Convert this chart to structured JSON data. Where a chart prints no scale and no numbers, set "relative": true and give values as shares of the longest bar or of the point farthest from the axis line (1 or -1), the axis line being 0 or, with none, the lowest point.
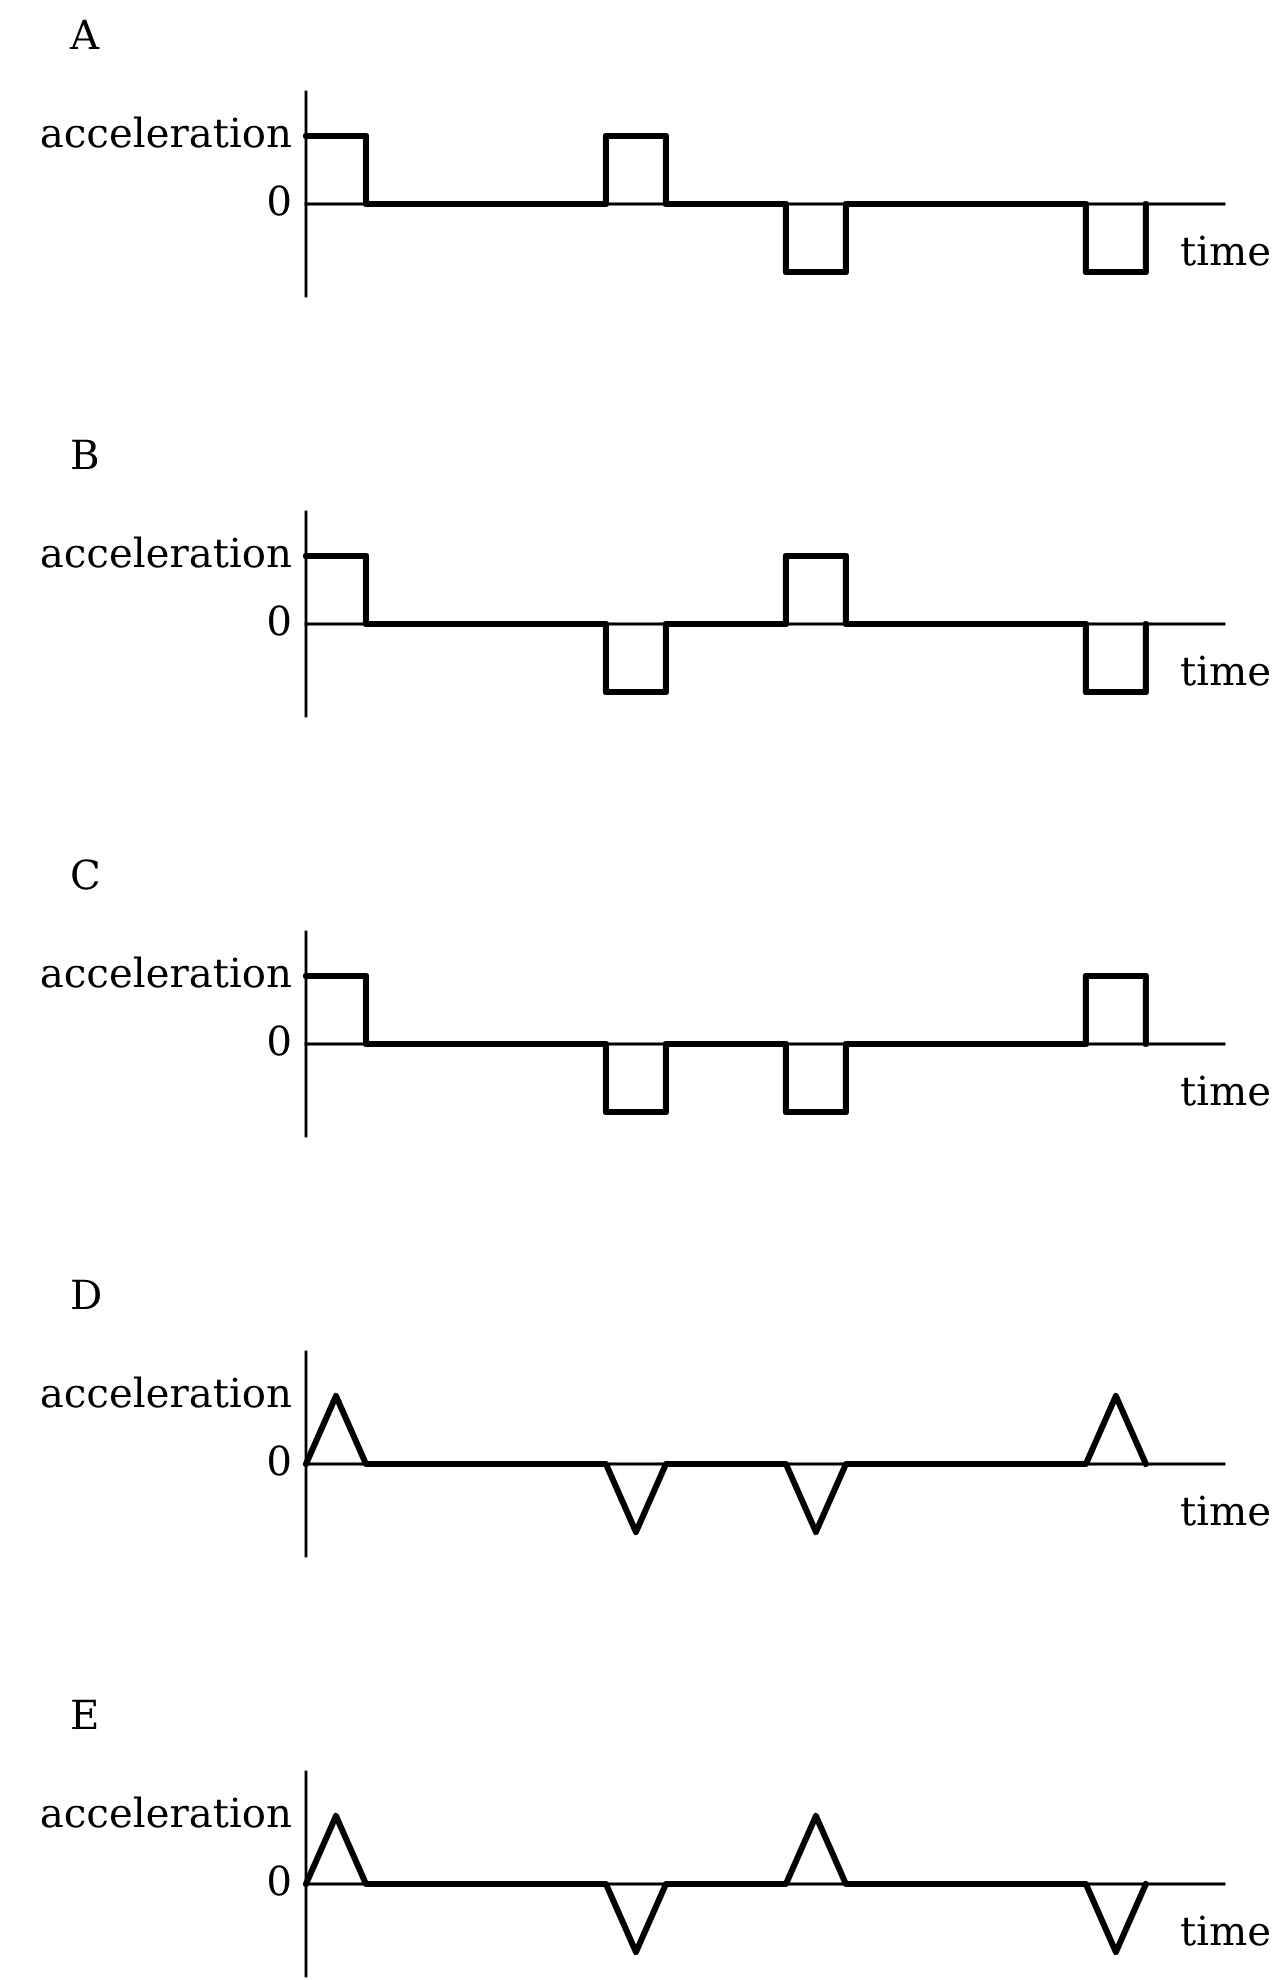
{
  "chart_data": [
    {
      "type": "step",
      "title": "A",
      "xlabel": "time",
      "ylabel": "acceleration",
      "relative": true,
      "annotations": [
        "0"
      ],
      "color": "#000000",
      "categories": [
        null,
        null,
        null,
        null,
        null,
        null,
        null,
        null,
        null,
        null,
        null,
        null,
        null,
        null,
        null
      ],
      "values": [
        1,
        0,
        0,
        0,
        0,
        1,
        0,
        0,
        -1,
        0,
        0,
        0,
        0,
        -1,
        0
      ]
    },
    {
      "type": "step",
      "title": "B",
      "xlabel": "time",
      "ylabel": "acceleration",
      "relative": true,
      "annotations": [
        "0"
      ],
      "color": "#000000",
      "categories": [
        null,
        null,
        null,
        null,
        null,
        null,
        null,
        null,
        null,
        null,
        null,
        null,
        null,
        null,
        null
      ],
      "values": [
        1,
        0,
        0,
        0,
        0,
        -1,
        0,
        0,
        1,
        0,
        0,
        0,
        0,
        -1,
        0
      ]
    },
    {
      "type": "step",
      "title": "C",
      "xlabel": "time",
      "ylabel": "acceleration",
      "relative": true,
      "annotations": [
        "0"
      ],
      "color": "#000000",
      "categories": [
        null,
        null,
        null,
        null,
        null,
        null,
        null,
        null,
        null,
        null,
        null,
        null,
        null,
        null,
        null
      ],
      "values": [
        1,
        0,
        0,
        0,
        0,
        -1,
        0,
        0,
        -1,
        0,
        0,
        0,
        0,
        1,
        0
      ]
    },
    {
      "type": "line",
      "title": "D",
      "xlabel": "time",
      "ylabel": "acceleration",
      "relative": true,
      "annotations": [
        "0"
      ],
      "color": "#000000",
      "categories": [
        null,
        null,
        null,
        null,
        null,
        null,
        null,
        null,
        null,
        null,
        null,
        null,
        null,
        null,
        null,
        null,
        null,
        null,
        null,
        null,
        null,
        null,
        null,
        null,
        null,
        null,
        null,
        null,
        null
      ],
      "values": [
        0,
        1,
        0,
        0,
        0,
        0,
        0,
        0,
        0,
        0,
        0,
        -1,
        0,
        0,
        0,
        0,
        0,
        -1,
        0,
        0,
        0,
        0,
        0,
        0,
        0,
        0,
        0,
        1,
        0
      ]
    },
    {
      "type": "line",
      "title": "E",
      "xlabel": "time",
      "ylabel": "acceleration",
      "relative": true,
      "annotations": [
        "0"
      ],
      "color": "#000000",
      "categories": [
        null,
        null,
        null,
        null,
        null,
        null,
        null,
        null,
        null,
        null,
        null,
        null,
        null,
        null,
        null,
        null,
        null,
        null,
        null,
        null,
        null,
        null,
        null,
        null,
        null,
        null,
        null,
        null,
        null
      ],
      "values": [
        0,
        1,
        0,
        0,
        0,
        0,
        0,
        0,
        0,
        0,
        0,
        -1,
        0,
        0,
        0,
        0,
        0,
        1,
        0,
        0,
        0,
        0,
        0,
        0,
        0,
        0,
        0,
        -1,
        0
      ]
    }
  ]
}
